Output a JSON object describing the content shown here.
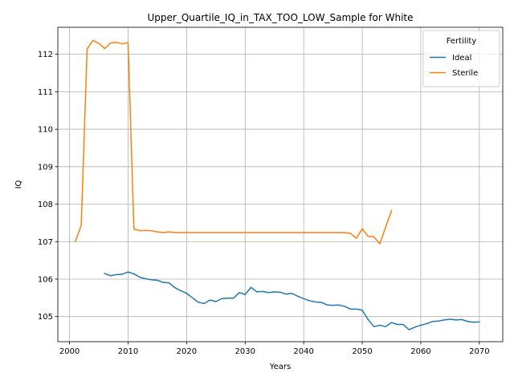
{
  "chart_data": {
    "type": "line",
    "title": "Upper_Quartile_IQ_in_TAX_TOO_LOW_Sample for White",
    "xlabel": "Years",
    "ylabel": "IQ",
    "xlim": [
      1998,
      2074
    ],
    "ylim": [
      104.33,
      112.72
    ],
    "xticks": [
      2000,
      2010,
      2020,
      2030,
      2040,
      2050,
      2060,
      2070
    ],
    "yticks": [
      105,
      106,
      107,
      108,
      109,
      110,
      111,
      112
    ],
    "grid": true,
    "legend": {
      "title": "Fertility",
      "placement": "top-right"
    },
    "series": [
      {
        "name": "Ideal",
        "color": "#1f77b4",
        "x": [
          2006,
          2007,
          2008,
          2009,
          2010,
          2011,
          2012,
          2013,
          2014,
          2015,
          2016,
          2017,
          2018,
          2019,
          2020,
          2021,
          2022,
          2023,
          2024,
          2025,
          2026,
          2027,
          2028,
          2029,
          2030,
          2031,
          2032,
          2033,
          2034,
          2035,
          2036,
          2037,
          2038,
          2039,
          2040,
          2041,
          2042,
          2043,
          2044,
          2045,
          2046,
          2047,
          2048,
          2049,
          2050,
          2051,
          2052,
          2053,
          2054,
          2055,
          2056,
          2057,
          2058,
          2059,
          2060,
          2061,
          2062,
          2063,
          2064,
          2065,
          2066,
          2067,
          2068,
          2069,
          2070
        ],
        "y": [
          106.15,
          106.09,
          106.12,
          106.13,
          106.19,
          106.14,
          106.05,
          106.01,
          105.98,
          105.97,
          105.91,
          105.9,
          105.77,
          105.69,
          105.62,
          105.5,
          105.38,
          105.35,
          105.44,
          105.4,
          105.48,
          105.49,
          105.49,
          105.64,
          105.59,
          105.78,
          105.66,
          105.67,
          105.64,
          105.66,
          105.65,
          105.6,
          105.62,
          105.54,
          105.48,
          105.42,
          105.39,
          105.38,
          105.31,
          105.3,
          105.31,
          105.27,
          105.2,
          105.2,
          105.17,
          104.92,
          104.73,
          104.77,
          104.73,
          104.84,
          104.79,
          104.79,
          104.65,
          104.72,
          104.77,
          104.81,
          104.87,
          104.88,
          104.91,
          104.93,
          104.91,
          104.92,
          104.87,
          104.85,
          104.86
        ]
      },
      {
        "name": "Sterile",
        "color": "#ff7f0e",
        "x": [
          2001,
          2002,
          2003,
          2004,
          2005,
          2006,
          2007,
          2008,
          2009,
          2010,
          2011,
          2012,
          2013,
          2014,
          2015,
          2016,
          2017,
          2018,
          2019,
          2020,
          2021,
          2022,
          2023,
          2024,
          2025,
          2026,
          2027,
          2028,
          2029,
          2030,
          2031,
          2032,
          2033,
          2034,
          2035,
          2036,
          2037,
          2038,
          2039,
          2040,
          2041,
          2042,
          2043,
          2044,
          2045,
          2046,
          2047,
          2048,
          2049,
          2050,
          2051,
          2052,
          2053,
          2054,
          2055
        ],
        "y": [
          107.01,
          107.43,
          112.14,
          112.37,
          112.29,
          112.15,
          112.3,
          112.32,
          112.28,
          112.31,
          107.34,
          107.29,
          107.3,
          107.29,
          107.26,
          107.24,
          107.26,
          107.24,
          107.24,
          107.24,
          107.24,
          107.24,
          107.24,
          107.24,
          107.24,
          107.24,
          107.24,
          107.24,
          107.24,
          107.24,
          107.24,
          107.24,
          107.24,
          107.24,
          107.24,
          107.24,
          107.24,
          107.24,
          107.24,
          107.24,
          107.24,
          107.24,
          107.24,
          107.24,
          107.24,
          107.24,
          107.24,
          107.22,
          107.09,
          107.34,
          107.14,
          107.13,
          106.94,
          107.39,
          107.83
        ]
      }
    ]
  }
}
